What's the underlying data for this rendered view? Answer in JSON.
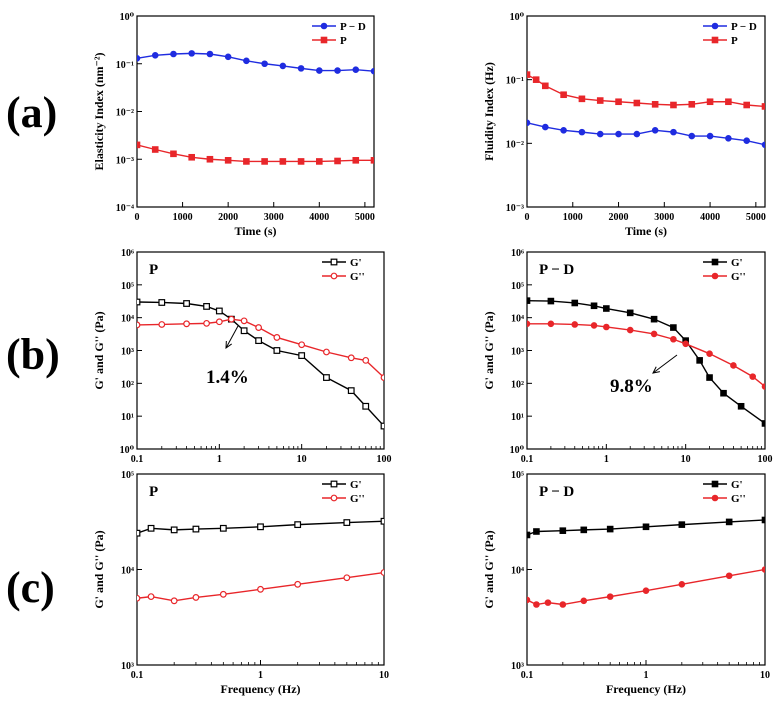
{
  "labels": {
    "a": "(a)",
    "b": "(b)",
    "c": "(c)"
  },
  "colors": {
    "black": "#000000",
    "red": "#e8262a",
    "blue": "#1f2ce0"
  },
  "chart_data": [
    {
      "id": "a-left",
      "type": "line",
      "title": "",
      "xlabel": "Time (s)",
      "ylabel": "Elasticity Index (nm⁻²)",
      "xscale": "linear",
      "yscale": "log",
      "xlim": [
        0,
        5200
      ],
      "ylim": [
        0.0001,
        1
      ],
      "xticks": [
        0,
        1000,
        2000,
        3000,
        4000,
        5000
      ],
      "xtick_labels": [
        "0",
        "1000",
        "2000",
        "3000",
        "4000",
        "5000"
      ],
      "yticks": [
        0.0001,
        0.001,
        0.01,
        0.1,
        1
      ],
      "ytick_labels": [
        "10⁻⁴",
        "10⁻³",
        "10⁻²",
        "10⁻¹",
        "10⁰"
      ],
      "legend": "top-right",
      "series": [
        {
          "name": "P − D",
          "color": "blue",
          "marker": "circle",
          "x": [
            0,
            400,
            800,
            1200,
            1600,
            2000,
            2400,
            2800,
            3200,
            3600,
            4000,
            4400,
            4800,
            5200
          ],
          "y": [
            0.13,
            0.15,
            0.16,
            0.165,
            0.16,
            0.14,
            0.115,
            0.1,
            0.09,
            0.08,
            0.072,
            0.072,
            0.075,
            0.07
          ]
        },
        {
          "name": "P",
          "color": "red",
          "marker": "square",
          "x": [
            0,
            400,
            800,
            1200,
            1600,
            2000,
            2400,
            2800,
            3200,
            3600,
            4000,
            4400,
            4800,
            5200
          ],
          "y": [
            0.002,
            0.0016,
            0.0013,
            0.0011,
            0.001,
            0.00095,
            0.0009,
            0.0009,
            0.0009,
            0.0009,
            0.0009,
            0.00092,
            0.00095,
            0.00095
          ]
        }
      ]
    },
    {
      "id": "a-right",
      "type": "line",
      "title": "",
      "xlabel": "Time (s)",
      "ylabel": "Fluidity Index (Hz)",
      "xscale": "linear",
      "yscale": "log",
      "xlim": [
        0,
        5200
      ],
      "ylim": [
        0.001,
        1
      ],
      "xticks": [
        0,
        1000,
        2000,
        3000,
        4000,
        5000
      ],
      "xtick_labels": [
        "0",
        "1000",
        "2000",
        "3000",
        "4000",
        "5000"
      ],
      "yticks": [
        0.001,
        0.01,
        0.1,
        1
      ],
      "ytick_labels": [
        "10⁻³",
        "10⁻²",
        "10⁻¹",
        "10⁰"
      ],
      "legend": "top-right",
      "series": [
        {
          "name": "P − D",
          "color": "blue",
          "marker": "circle",
          "x": [
            0,
            400,
            800,
            1200,
            1600,
            2000,
            2400,
            2800,
            3200,
            3600,
            4000,
            4400,
            4800,
            5200
          ],
          "y": [
            0.021,
            0.018,
            0.016,
            0.015,
            0.014,
            0.014,
            0.014,
            0.016,
            0.015,
            0.013,
            0.013,
            0.012,
            0.011,
            0.0095
          ]
        },
        {
          "name": "P",
          "color": "red",
          "marker": "square",
          "x": [
            0,
            200,
            400,
            800,
            1200,
            1600,
            2000,
            2400,
            2800,
            3200,
            3600,
            4000,
            4400,
            4800,
            5200
          ],
          "y": [
            0.12,
            0.1,
            0.08,
            0.058,
            0.05,
            0.047,
            0.045,
            0.043,
            0.041,
            0.04,
            0.041,
            0.045,
            0.045,
            0.04,
            0.038
          ]
        }
      ]
    },
    {
      "id": "b-left",
      "type": "line",
      "title": "P",
      "xlabel": "",
      "ylabel": "G' and G'' (Pa)",
      "xscale": "log",
      "yscale": "log",
      "xlim": [
        0.1,
        100
      ],
      "ylim": [
        1,
        1000000
      ],
      "xticks": [
        0.1,
        1,
        10,
        100
      ],
      "xtick_labels": [
        "0.1",
        "1",
        "10",
        "100"
      ],
      "yticks": [
        1,
        10,
        100,
        1000,
        10000,
        100000,
        1000000
      ],
      "ytick_labels": [
        "10⁰",
        "10¹",
        "10²",
        "10³",
        "10⁴",
        "10⁵",
        "10⁶"
      ],
      "legend": "top-right",
      "annotation": {
        "text": "1.4%",
        "x": 1.4
      },
      "series": [
        {
          "name": "G'",
          "color": "black",
          "marker": "square-open",
          "x": [
            0.1,
            0.2,
            0.4,
            0.7,
            1,
            1.4,
            2,
            3,
            5,
            10,
            20,
            40,
            60,
            100
          ],
          "y": [
            30000,
            29000,
            27000,
            22000,
            16000,
            9000,
            4000,
            2000,
            1000,
            700,
            150,
            60,
            20,
            5
          ]
        },
        {
          "name": "G''",
          "color": "red",
          "marker": "circle-open",
          "x": [
            0.1,
            0.2,
            0.4,
            0.7,
            1,
            1.4,
            2,
            3,
            5,
            10,
            20,
            40,
            60,
            100
          ],
          "y": [
            6000,
            6200,
            6500,
            6700,
            7500,
            9000,
            8000,
            5000,
            2500,
            1500,
            900,
            600,
            500,
            150
          ]
        }
      ]
    },
    {
      "id": "b-right",
      "type": "line",
      "title": "P − D",
      "xlabel": "",
      "ylabel": "G' and G'' (Pa)",
      "xscale": "log",
      "yscale": "log",
      "xlim": [
        0.1,
        100
      ],
      "ylim": [
        1,
        1000000
      ],
      "xticks": [
        0.1,
        1,
        10,
        100
      ],
      "xtick_labels": [
        "0.1",
        "1",
        "10",
        "100"
      ],
      "yticks": [
        1,
        10,
        100,
        1000,
        10000,
        100000,
        1000000
      ],
      "ytick_labels": [
        "10⁰",
        "10¹",
        "10²",
        "10³",
        "10⁴",
        "10⁵",
        "10⁶"
      ],
      "legend": "top-right",
      "annotation": {
        "text": "9.8%",
        "x": 9.8
      },
      "series": [
        {
          "name": "G'",
          "color": "black",
          "marker": "square",
          "x": [
            0.1,
            0.2,
            0.4,
            0.7,
            1,
            2,
            4,
            7,
            10,
            15,
            20,
            30,
            50,
            100
          ],
          "y": [
            33000,
            32000,
            28000,
            23000,
            19000,
            14000,
            9000,
            5000,
            2000,
            500,
            150,
            50,
            20,
            6
          ]
        },
        {
          "name": "G''",
          "color": "red",
          "marker": "circle",
          "x": [
            0.1,
            0.2,
            0.4,
            0.7,
            1,
            2,
            4,
            7,
            10,
            20,
            40,
            70,
            100
          ],
          "y": [
            6500,
            6500,
            6200,
            5800,
            5200,
            4200,
            3200,
            2200,
            1600,
            800,
            350,
            160,
            80
          ]
        }
      ]
    },
    {
      "id": "c-left",
      "type": "line",
      "title": "P",
      "xlabel": "Frequency (Hz)",
      "ylabel": "G' and G'' (Pa)",
      "xscale": "log",
      "yscale": "log",
      "xlim": [
        0.1,
        10
      ],
      "ylim": [
        1000,
        100000
      ],
      "xticks": [
        0.1,
        1,
        10
      ],
      "xtick_labels": [
        "0.1",
        "1",
        "10"
      ],
      "yticks": [
        1000,
        10000,
        100000
      ],
      "ytick_labels": [
        "10³",
        "10⁴",
        "10⁵"
      ],
      "legend": "top-right",
      "series": [
        {
          "name": "G'",
          "color": "black",
          "marker": "square-open",
          "x": [
            0.1,
            0.13,
            0.2,
            0.3,
            0.5,
            1,
            2,
            5,
            10
          ],
          "y": [
            24000,
            27000,
            26000,
            26500,
            27000,
            28000,
            29500,
            31000,
            32000
          ]
        },
        {
          "name": "G''",
          "color": "red",
          "marker": "circle-open",
          "x": [
            0.1,
            0.13,
            0.2,
            0.3,
            0.5,
            1,
            2,
            5,
            10
          ],
          "y": [
            5000,
            5200,
            4700,
            5100,
            5500,
            6200,
            7000,
            8200,
            9300
          ]
        }
      ]
    },
    {
      "id": "c-right",
      "type": "line",
      "title": "P − D",
      "xlabel": "Frequency (Hz)",
      "ylabel": "G' and G'' (Pa)",
      "xscale": "log",
      "yscale": "log",
      "xlim": [
        0.1,
        10
      ],
      "ylim": [
        1000,
        100000
      ],
      "xticks": [
        0.1,
        1,
        10
      ],
      "xtick_labels": [
        "0.1",
        "1",
        "10"
      ],
      "yticks": [
        1000,
        10000,
        100000
      ],
      "ytick_labels": [
        "10³",
        "10⁴",
        "10⁵"
      ],
      "legend": "top-right",
      "series": [
        {
          "name": "G'",
          "color": "black",
          "marker": "square",
          "x": [
            0.1,
            0.12,
            0.2,
            0.3,
            0.5,
            1,
            2,
            5,
            10
          ],
          "y": [
            23000,
            25000,
            25500,
            26000,
            26500,
            28000,
            29500,
            31500,
            33000
          ]
        },
        {
          "name": "G''",
          "color": "red",
          "marker": "circle",
          "x": [
            0.1,
            0.12,
            0.15,
            0.2,
            0.3,
            0.5,
            1,
            2,
            5,
            10
          ],
          "y": [
            4800,
            4300,
            4500,
            4300,
            4700,
            5200,
            6000,
            7000,
            8600,
            10000
          ]
        }
      ]
    }
  ]
}
